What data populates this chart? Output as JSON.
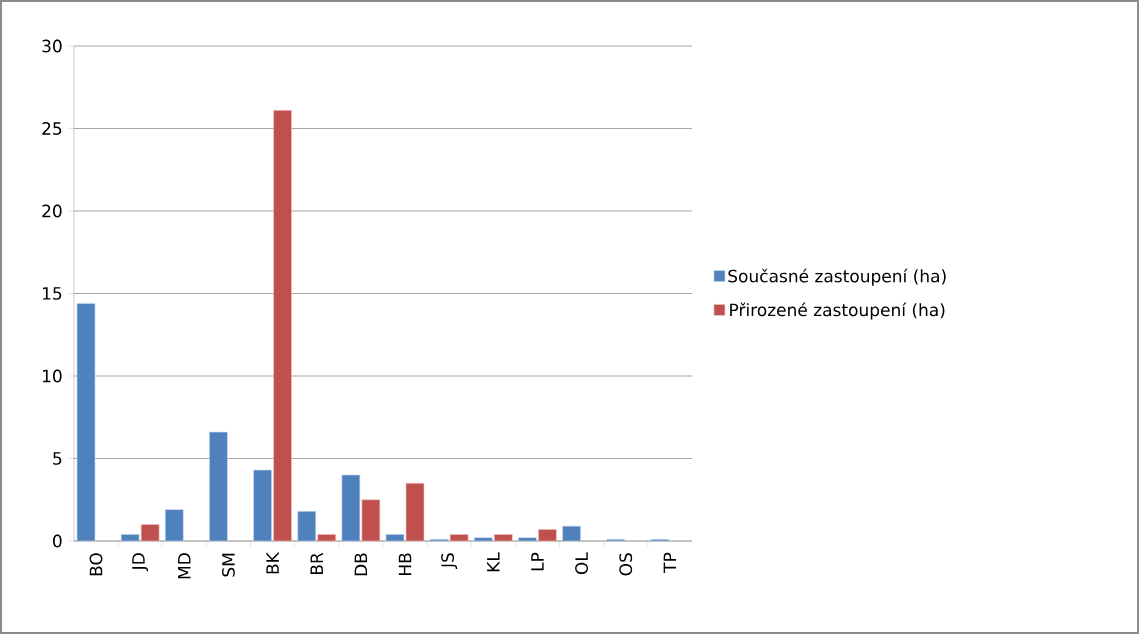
{
  "chart_data": {
    "type": "bar",
    "categories": [
      "BO",
      "JD",
      "MD",
      "SM",
      "BK",
      "BR",
      "DB",
      "HB",
      "JS",
      "KL",
      "LP",
      "OL",
      "OS",
      "TP"
    ],
    "series": [
      {
        "name": "Současné zastoupení (ha)",
        "color": "#4f81bd",
        "values": [
          14.4,
          0.4,
          1.9,
          6.6,
          4.3,
          1.8,
          4.0,
          0.4,
          0.1,
          0.2,
          0.2,
          0.9,
          0.1,
          0.1
        ]
      },
      {
        "name": "Přirozené zastoupení (ha)",
        "color": "#c0504d",
        "values": [
          null,
          1.0,
          null,
          null,
          26.1,
          0.4,
          2.5,
          3.5,
          0.4,
          0.4,
          0.7,
          null,
          null,
          null
        ]
      }
    ],
    "ylim": [
      0,
      30
    ],
    "yticks": [
      0,
      5,
      10,
      15,
      20,
      25,
      30
    ],
    "grid": "y",
    "legend": "right"
  }
}
